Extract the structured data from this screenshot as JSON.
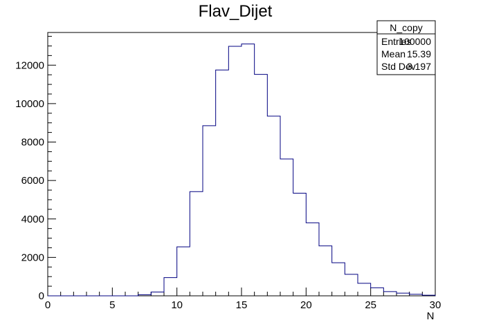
{
  "chart_data": {
    "type": "bar",
    "title": "Flav_Dijet",
    "xlabel": "N",
    "ylabel": "",
    "xlim": [
      0,
      30
    ],
    "ylim": [
      0,
      13700
    ],
    "grid": false,
    "bin_width": 1,
    "bin_edges_start": 0,
    "values": [
      0,
      0,
      0,
      0,
      0,
      0,
      0,
      60,
      200,
      950,
      2550,
      5420,
      8850,
      11750,
      12980,
      13100,
      11520,
      9350,
      7120,
      5340,
      3800,
      2600,
      1720,
      1120,
      650,
      420,
      220,
      140,
      80,
      30
    ],
    "x_ticks": [
      0,
      5,
      10,
      15,
      20,
      25,
      30
    ],
    "x_tick_labels": [
      "0",
      "5",
      "10",
      "15",
      "20",
      "25",
      "30"
    ],
    "y_ticks": [
      0,
      2000,
      4000,
      6000,
      8000,
      10000,
      12000
    ],
    "y_tick_labels": [
      "0",
      "2000",
      "4000",
      "6000",
      "8000",
      "10000",
      "12000"
    ],
    "line_color": "#000080",
    "stats_box": {
      "name": "N_copy",
      "placement": "top-right",
      "rows": [
        {
          "label": "Entries",
          "value": "100000"
        },
        {
          "label": "Mean",
          "value": "15.39"
        },
        {
          "label": "Std Dev",
          "value": "3.197"
        }
      ]
    }
  }
}
